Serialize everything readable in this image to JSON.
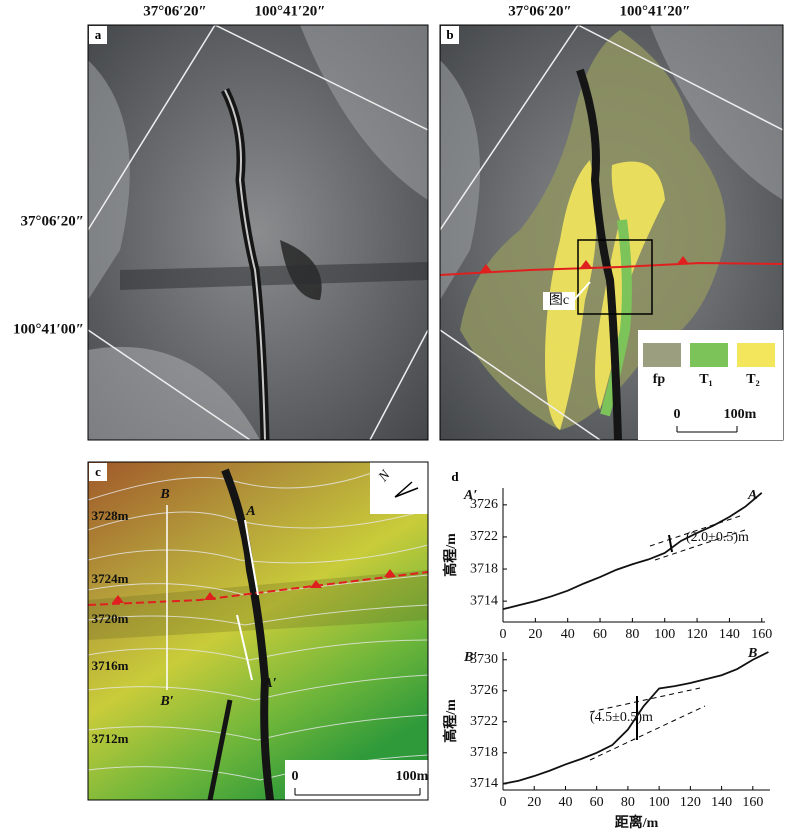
{
  "map_labels": {
    "top": [
      "37°06′20″",
      "100°41′20″",
      "37°06′20″",
      "100°41′20″"
    ],
    "left": [
      "37°06′20″",
      "100°41′00″"
    ]
  },
  "panel_a": {
    "label": "a"
  },
  "panel_b": {
    "label": "b",
    "callout": "图c",
    "legend": [
      {
        "name": "fp",
        "color": "#9c9e80"
      },
      {
        "name": "T₁",
        "color": "#7cc35a"
      },
      {
        "name": "T₂",
        "color": "#f3e55c"
      }
    ],
    "scale": [
      "0",
      "100m"
    ]
  },
  "panel_c": {
    "label": "c",
    "north": "N",
    "profiles": [
      "B",
      "A",
      "A′",
      "B′"
    ],
    "contours": [
      "3728m",
      "3724m",
      "3720m",
      "3716m",
      "3712m"
    ],
    "scale": [
      "0",
      "100m"
    ]
  },
  "panel_d": {
    "label": "d"
  },
  "chart_data": [
    {
      "type": "line",
      "start_label": "A′",
      "end_label": "A",
      "offset_label": "(2.0±0.5)m",
      "y_label": "高程/m",
      "x": [
        0,
        10,
        20,
        30,
        40,
        50,
        60,
        70,
        80,
        90,
        100,
        110,
        120,
        130,
        140,
        150,
        160
      ],
      "values": [
        3713,
        3713.5,
        3714,
        3714.6,
        3715.3,
        3716.2,
        3717,
        3717.9,
        3718.6,
        3719.2,
        3720,
        3721.5,
        3722.5,
        3723.4,
        3724.5,
        3725.8,
        3727.5
      ],
      "color": "#111111",
      "xlim": [
        0,
        162
      ],
      "ylim": [
        3711.4,
        3728.1
      ],
      "xticks": [
        0,
        20,
        40,
        60,
        80,
        100,
        120,
        140,
        160
      ],
      "yticks": [
        3714,
        3718,
        3722,
        3726
      ]
    },
    {
      "type": "line",
      "start_label": "B′",
      "end_label": "B",
      "offset_label": "(4.5±0.5)m",
      "y_label": "高程/m",
      "x_label": "距离/m",
      "x": [
        0,
        10,
        20,
        30,
        40,
        50,
        60,
        70,
        80,
        90,
        100,
        110,
        120,
        130,
        140,
        150,
        160,
        170
      ],
      "values": [
        3714,
        3714.4,
        3715,
        3715.7,
        3716.5,
        3717.2,
        3718,
        3719,
        3721,
        3724,
        3726.3,
        3726.6,
        3727,
        3727.5,
        3728,
        3728.8,
        3730,
        3731
      ],
      "color": "#111111",
      "xlim": [
        0,
        171
      ],
      "ylim": [
        3713.2,
        3731
      ],
      "xticks": [
        0,
        20,
        40,
        60,
        80,
        100,
        120,
        140,
        160
      ],
      "yticks": [
        3714,
        3718,
        3722,
        3726,
        3730
      ]
    }
  ]
}
